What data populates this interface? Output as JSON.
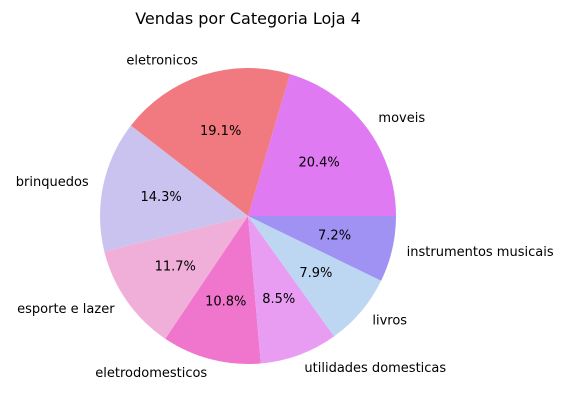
{
  "chart_data": {
    "type": "pie",
    "title": "Vendas por Categoria Loja 4",
    "start_angle_deg": 0,
    "direction": "counterclockwise",
    "slices": [
      {
        "label": "moveis",
        "value": 20.4,
        "pct_label": "20.4%",
        "color": "#DF7AF2"
      },
      {
        "label": "eletronicos",
        "value": 19.1,
        "pct_label": "19.1%",
        "color": "#F07A80"
      },
      {
        "label": "brinquedos",
        "value": 14.3,
        "pct_label": "14.3%",
        "color": "#CBC3EF"
      },
      {
        "label": "esporte e lazer",
        "value": 11.7,
        "pct_label": "11.7%",
        "color": "#F0AFD9"
      },
      {
        "label": "eletrodomesticos",
        "value": 10.8,
        "pct_label": "10.8%",
        "color": "#F075CD"
      },
      {
        "label": "utilidades domesticas",
        "value": 8.5,
        "pct_label": "8.5%",
        "color": "#E89DF3"
      },
      {
        "label": "livros",
        "value": 7.9,
        "pct_label": "7.9%",
        "color": "#BDD7F2"
      },
      {
        "label": "instrumentos musicais",
        "value": 7.2,
        "pct_label": "7.2%",
        "color": "#A092F3"
      }
    ]
  }
}
